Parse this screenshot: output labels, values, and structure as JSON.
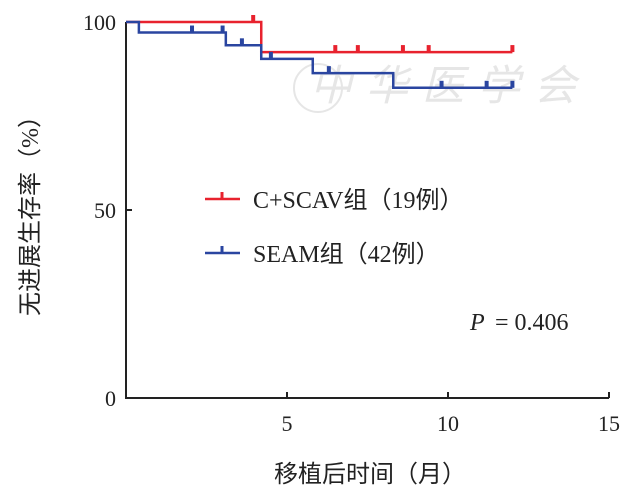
{
  "chart_data": {
    "type": "line",
    "subtype": "kaplan-meier",
    "xlabel": "移植后时间（月）",
    "ylabel": "无进展生存率（%）",
    "xlim": [
      0,
      15
    ],
    "ylim": [
      0,
      100
    ],
    "xticks": [
      "5",
      "10",
      "15"
    ],
    "yticks": [
      "0",
      "50",
      "100"
    ],
    "xtick_values": [
      5,
      10,
      15
    ],
    "ytick_values": [
      0,
      50,
      100
    ],
    "legend_placement": "center",
    "annotation": {
      "p_label": "P",
      "p_value": "= 0.406"
    },
    "watermark": "中华医学会",
    "series": [
      {
        "name": "C+SCAV组（19例）",
        "color": "#e8222e",
        "steps": [
          [
            0,
            100
          ],
          [
            4.2,
            100
          ],
          [
            4.2,
            92
          ],
          [
            12,
            92
          ]
        ],
        "censored": [
          [
            3.95,
            100
          ],
          [
            6.5,
            92
          ],
          [
            7.2,
            92
          ],
          [
            8.6,
            92
          ],
          [
            9.4,
            92
          ],
          [
            12.0,
            92
          ]
        ]
      },
      {
        "name": "SEAM组（42例）",
        "color": "#2a45a0",
        "steps": [
          [
            0,
            100
          ],
          [
            0.4,
            100
          ],
          [
            0.4,
            97.2
          ],
          [
            3.1,
            97.2
          ],
          [
            3.1,
            93.8
          ],
          [
            4.2,
            93.8
          ],
          [
            4.2,
            90.2
          ],
          [
            5.8,
            90.2
          ],
          [
            5.8,
            86.4
          ],
          [
            8.3,
            86.4
          ],
          [
            8.3,
            82.5
          ],
          [
            12,
            82.5
          ]
        ],
        "censored": [
          [
            2.05,
            97.2
          ],
          [
            3.0,
            97.2
          ],
          [
            3.6,
            93.8
          ],
          [
            4.5,
            90.2
          ],
          [
            6.3,
            86.4
          ],
          [
            9.8,
            82.5
          ],
          [
            11.2,
            82.5
          ],
          [
            12.0,
            82.5
          ]
        ]
      }
    ]
  }
}
